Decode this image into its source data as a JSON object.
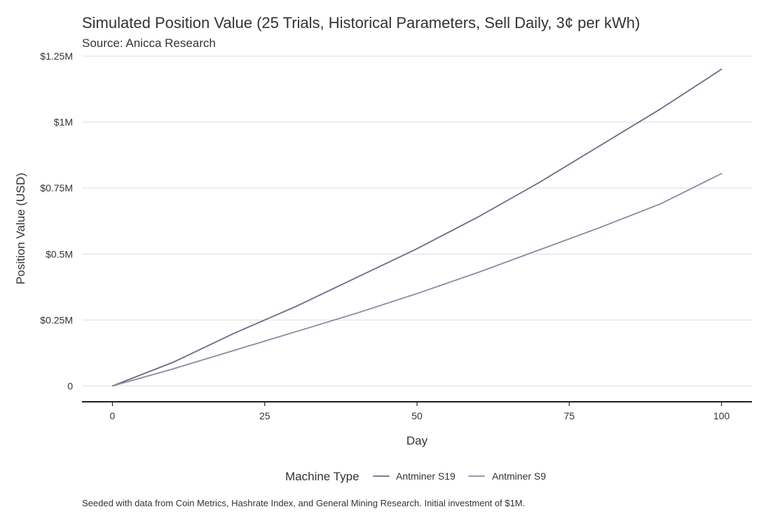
{
  "chart_data": {
    "type": "line",
    "title": "Simulated Position Value (25 Trials, Historical Parameters, Sell Daily, 3¢ per kWh)",
    "subtitle": "Source: Anicca Research",
    "xlabel": "Day",
    "ylabel": "Position Value (USD)",
    "xlim": [
      -5,
      105
    ],
    "ylim": [
      -0.06,
      1.25
    ],
    "x_ticks": [
      0,
      25,
      50,
      75,
      100
    ],
    "x_tick_labels": [
      "0",
      "25",
      "50",
      "75",
      "100"
    ],
    "y_ticks": [
      0,
      0.25,
      0.5,
      0.75,
      1.0,
      1.25
    ],
    "y_tick_labels": [
      "0",
      "$0.25M",
      "$0.5M",
      "$0.75M",
      "$1M",
      "$1.25M"
    ],
    "y_unit": "USD millions",
    "grid": true,
    "legend": {
      "title": "Machine Type",
      "placement": "bottom"
    },
    "series": [
      {
        "name": "Antminer S19",
        "color": "#6e6a86",
        "x": [
          0,
          10,
          20,
          30,
          40,
          50,
          60,
          70,
          80,
          90,
          100
        ],
        "values": [
          0,
          0.09,
          0.2,
          0.3,
          0.41,
          0.52,
          0.64,
          0.77,
          0.91,
          1.05,
          1.2
        ]
      },
      {
        "name": "Antminer S9",
        "color": "#8c8aa0",
        "x": [
          0,
          10,
          20,
          30,
          40,
          50,
          60,
          70,
          80,
          90,
          100
        ],
        "values": [
          0,
          0.065,
          0.135,
          0.205,
          0.275,
          0.35,
          0.43,
          0.515,
          0.6,
          0.69,
          0.805
        ]
      }
    ],
    "caption": "Seeded with data from Coin Metrics, Hashrate Index, and General Mining Research. Initial investment of $1M."
  }
}
